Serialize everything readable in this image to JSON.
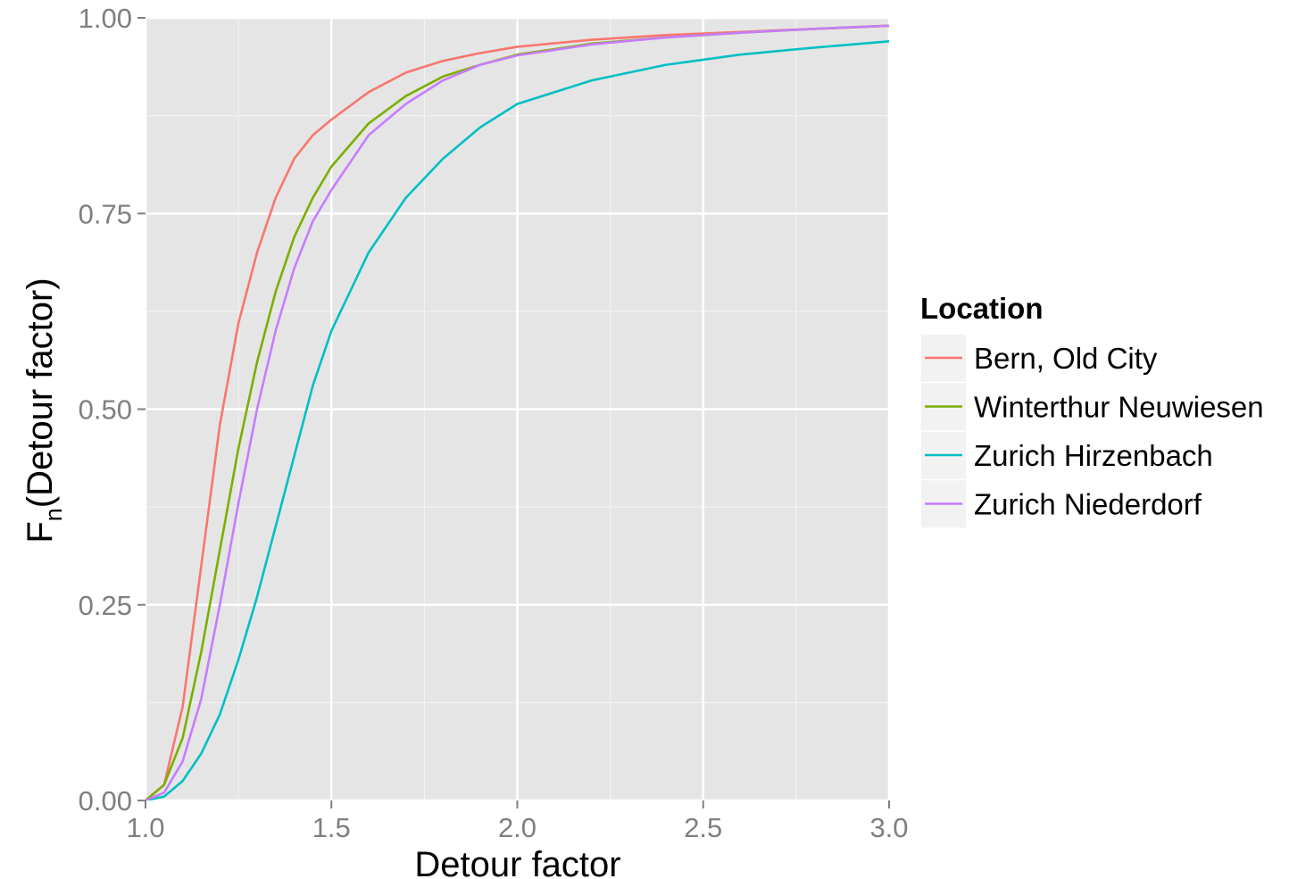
{
  "chart_data": {
    "type": "line",
    "title": "",
    "xlabel": "Detour factor",
    "ylabel_main": "F",
    "ylabel_sub": "n",
    "ylabel_paren": "(Detour factor)",
    "xlim": [
      1.0,
      3.0
    ],
    "ylim": [
      0.0,
      1.0
    ],
    "x_ticks": [
      1.0,
      1.5,
      2.0,
      2.5,
      3.0
    ],
    "x_tick_labels": [
      "1.0",
      "1.5",
      "2.0",
      "2.5",
      "3.0"
    ],
    "y_ticks": [
      0.0,
      0.25,
      0.5,
      0.75,
      1.0
    ],
    "y_tick_labels": [
      "0.00",
      "0.25",
      "0.50",
      "0.75",
      "1.00"
    ],
    "grid": true,
    "legend": {
      "title": "Location",
      "placement": "right"
    },
    "series": [
      {
        "name": "Bern, Old City",
        "color": "#F8766D",
        "x": [
          1.0,
          1.05,
          1.1,
          1.15,
          1.2,
          1.25,
          1.3,
          1.35,
          1.4,
          1.45,
          1.5,
          1.6,
          1.7,
          1.8,
          1.9,
          2.0,
          2.2,
          2.4,
          2.6,
          2.8,
          3.0
        ],
        "y": [
          0.0,
          0.02,
          0.12,
          0.3,
          0.48,
          0.61,
          0.7,
          0.77,
          0.82,
          0.85,
          0.87,
          0.905,
          0.93,
          0.945,
          0.955,
          0.963,
          0.972,
          0.978,
          0.982,
          0.986,
          0.99
        ]
      },
      {
        "name": "Winterthur Neuwiesen",
        "color": "#7CAE00",
        "x": [
          1.0,
          1.05,
          1.1,
          1.15,
          1.2,
          1.25,
          1.3,
          1.35,
          1.4,
          1.45,
          1.5,
          1.6,
          1.7,
          1.8,
          1.9,
          2.0,
          2.2,
          2.4,
          2.6,
          2.8,
          3.0
        ],
        "y": [
          0.0,
          0.02,
          0.08,
          0.19,
          0.32,
          0.45,
          0.56,
          0.65,
          0.72,
          0.77,
          0.81,
          0.865,
          0.9,
          0.925,
          0.94,
          0.953,
          0.967,
          0.975,
          0.981,
          0.986,
          0.99
        ]
      },
      {
        "name": "Zurich Hirzenbach",
        "color": "#00BFC4",
        "x": [
          1.0,
          1.05,
          1.1,
          1.15,
          1.2,
          1.25,
          1.3,
          1.35,
          1.4,
          1.45,
          1.5,
          1.6,
          1.7,
          1.8,
          1.9,
          2.0,
          2.2,
          2.4,
          2.6,
          2.8,
          3.0
        ],
        "y": [
          0.0,
          0.005,
          0.025,
          0.06,
          0.11,
          0.18,
          0.26,
          0.35,
          0.44,
          0.53,
          0.6,
          0.7,
          0.77,
          0.82,
          0.86,
          0.89,
          0.92,
          0.94,
          0.953,
          0.962,
          0.97
        ]
      },
      {
        "name": "Zurich Niederdorf",
        "color": "#C77CFF",
        "x": [
          1.0,
          1.05,
          1.1,
          1.15,
          1.2,
          1.25,
          1.3,
          1.35,
          1.4,
          1.45,
          1.5,
          1.6,
          1.7,
          1.8,
          1.9,
          2.0,
          2.2,
          2.4,
          2.6,
          2.8,
          3.0
        ],
        "y": [
          0.0,
          0.01,
          0.05,
          0.13,
          0.25,
          0.38,
          0.5,
          0.6,
          0.68,
          0.74,
          0.78,
          0.85,
          0.89,
          0.92,
          0.94,
          0.952,
          0.966,
          0.975,
          0.981,
          0.986,
          0.99
        ]
      }
    ]
  }
}
